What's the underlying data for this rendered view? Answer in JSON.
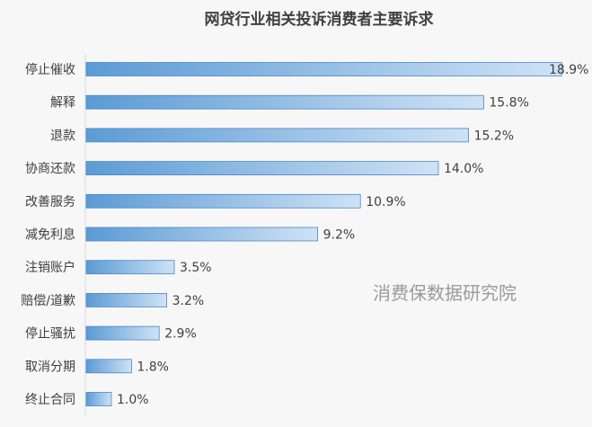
{
  "chart_data": {
    "type": "bar",
    "orientation": "horizontal",
    "title": "网贷行业相关投诉消费者主要诉求",
    "categories": [
      "停止催收",
      "解释",
      "退款",
      "协商还款",
      "改善服务",
      "减免利息",
      "注销账户",
      "赔偿/道歉",
      "停止骚扰",
      "取消分期",
      "终止合同"
    ],
    "values": [
      18.9,
      15.8,
      15.2,
      14.0,
      10.9,
      9.2,
      3.5,
      3.2,
      2.9,
      1.8,
      1.0
    ],
    "value_labels": [
      "18.9%",
      "15.8%",
      "15.2%",
      "14.0%",
      "10.9%",
      "9.2%",
      "3.5%",
      "3.2%",
      "2.9%",
      "1.8%",
      "1.0%"
    ],
    "xlim": [
      0,
      19
    ],
    "grid": false,
    "legend": "none",
    "colors": {
      "bar_start": "#5b9bd5",
      "bar_end": "#cfe2f5",
      "bar_stroke": "#4a86c5"
    }
  },
  "watermark": "消费保数据研究院"
}
